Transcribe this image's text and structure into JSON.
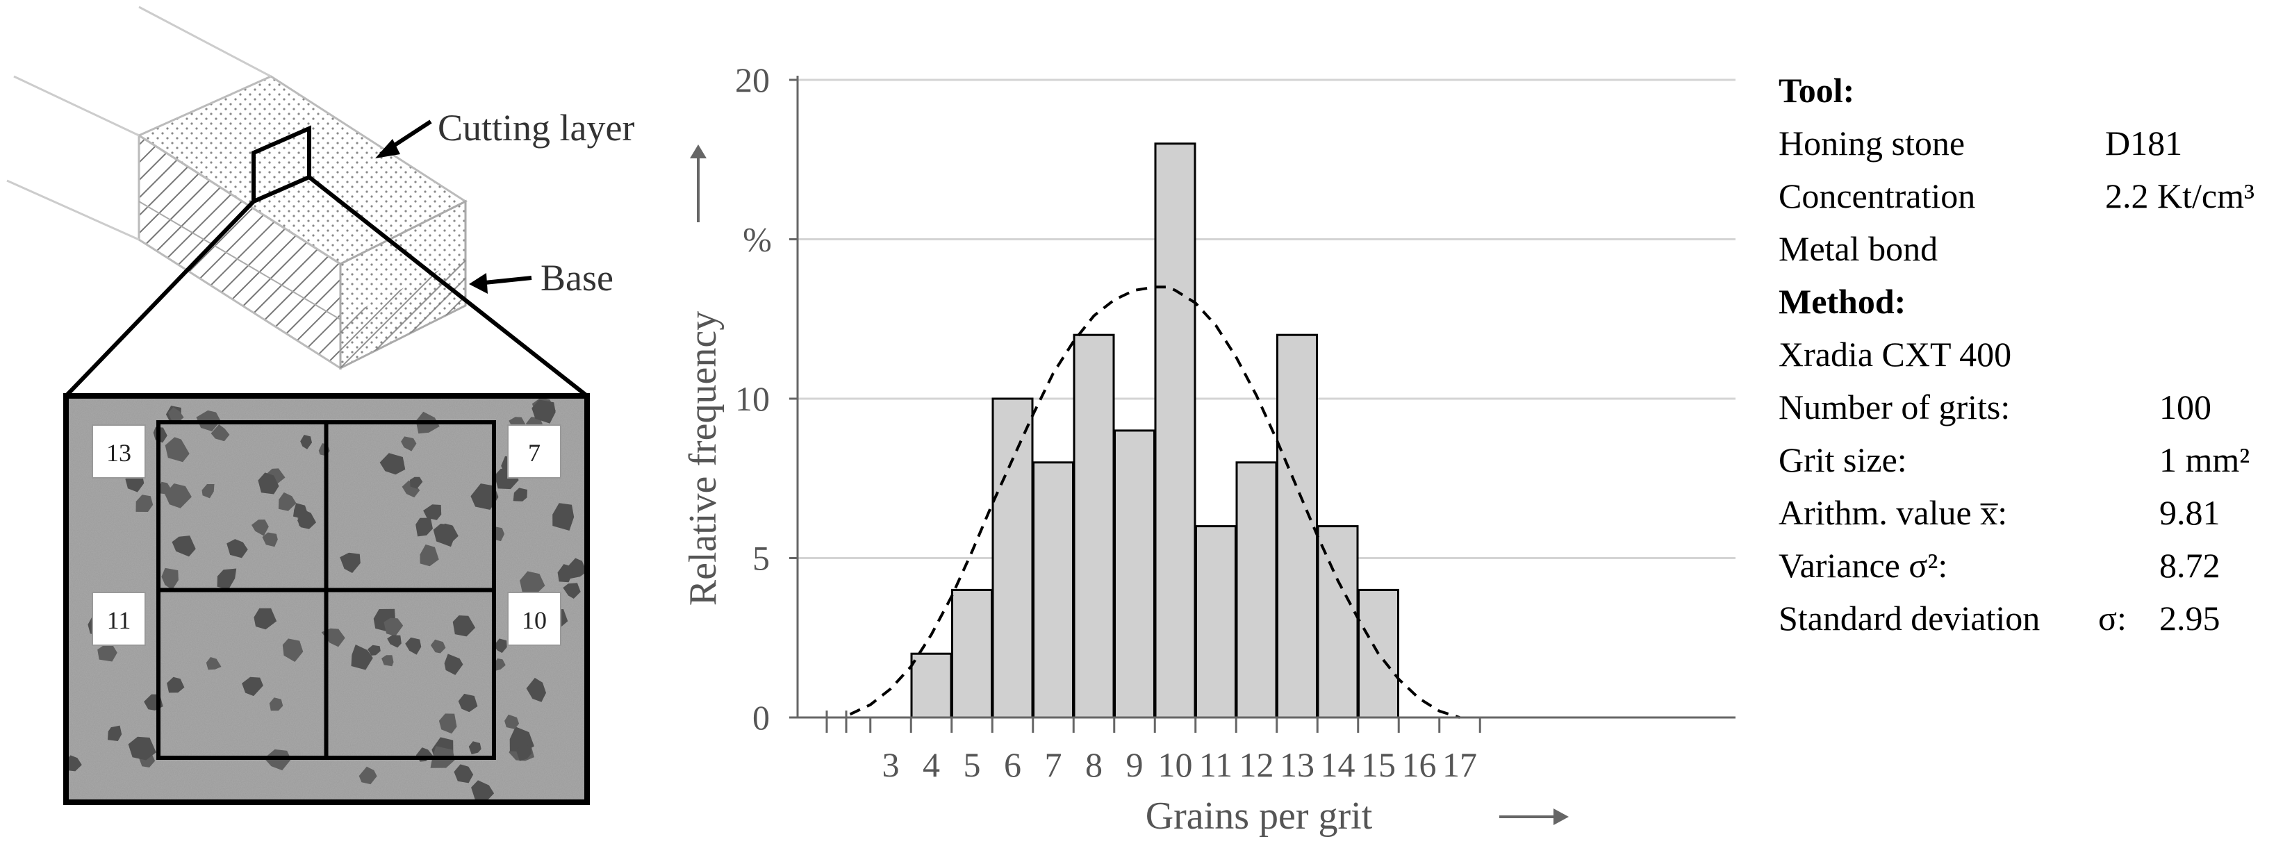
{
  "figure": {
    "diagram": {
      "cutting_layer_label": "Cutting layer",
      "base_label": "Base",
      "cell_counts": [
        "13",
        "7",
        "11",
        "10"
      ]
    },
    "info": {
      "tool_heading": "Tool:",
      "honing_stone_label": "Honing stone",
      "honing_stone_value": "D181",
      "concentration_label": "Concentration",
      "concentration_value": "2.2 Kt/cm³",
      "bond_label": "Metal bond",
      "method_heading": "Method:",
      "method_value": "Xradia CXT 400",
      "grits_label": "Number of grits:",
      "grits_value": "100",
      "grit_size_label": "Grit size:",
      "grit_size_value": "1 mm²",
      "mean_label": "Arithm. value x̅:",
      "mean_value": "9.81",
      "variance_label": "Variance σ²:",
      "variance_value": "8.72",
      "std_label": "Standard deviation",
      "std_symbol": "σ:",
      "std_value": "2.95"
    }
  },
  "chart_data": {
    "type": "bar",
    "title": "",
    "xlabel": "Grains per grit",
    "ylabel": "Relative frequency",
    "yunit": "%",
    "categories": [
      "3",
      "4",
      "5",
      "6",
      "7",
      "8",
      "9",
      "10",
      "11",
      "12",
      "13",
      "14",
      "15",
      "16",
      "17"
    ],
    "values": [
      0,
      2,
      4,
      10,
      8,
      12,
      9,
      18,
      6,
      8,
      12,
      6,
      4,
      0,
      0
    ],
    "yticks": [
      0,
      5,
      10,
      20
    ],
    "ylim": [
      0,
      20
    ],
    "grid": true,
    "legend": "none",
    "bar_color": "#d0d0d0",
    "fit_curve": {
      "style": "dashed",
      "type": "normal",
      "x": [
        2,
        2.5,
        3,
        3.5,
        4,
        4.5,
        5,
        5.5,
        6,
        6.5,
        7,
        7.5,
        8,
        8.5,
        9,
        9.5,
        9.8,
        10,
        10.5,
        11,
        11.5,
        12,
        12.5,
        13,
        13.5,
        14,
        14.5,
        15,
        15.5,
        16,
        16.5,
        17
      ],
      "y": [
        0.1,
        0.4,
        0.9,
        1.6,
        2.6,
        3.8,
        5.2,
        6.7,
        8.1,
        9.5,
        10.8,
        11.8,
        12.6,
        13.1,
        13.4,
        13.5,
        13.5,
        13.4,
        13.0,
        12.3,
        11.3,
        10.1,
        8.7,
        7.2,
        5.7,
        4.3,
        3.1,
        2.0,
        1.2,
        0.6,
        0.2,
        0.0
      ]
    }
  }
}
